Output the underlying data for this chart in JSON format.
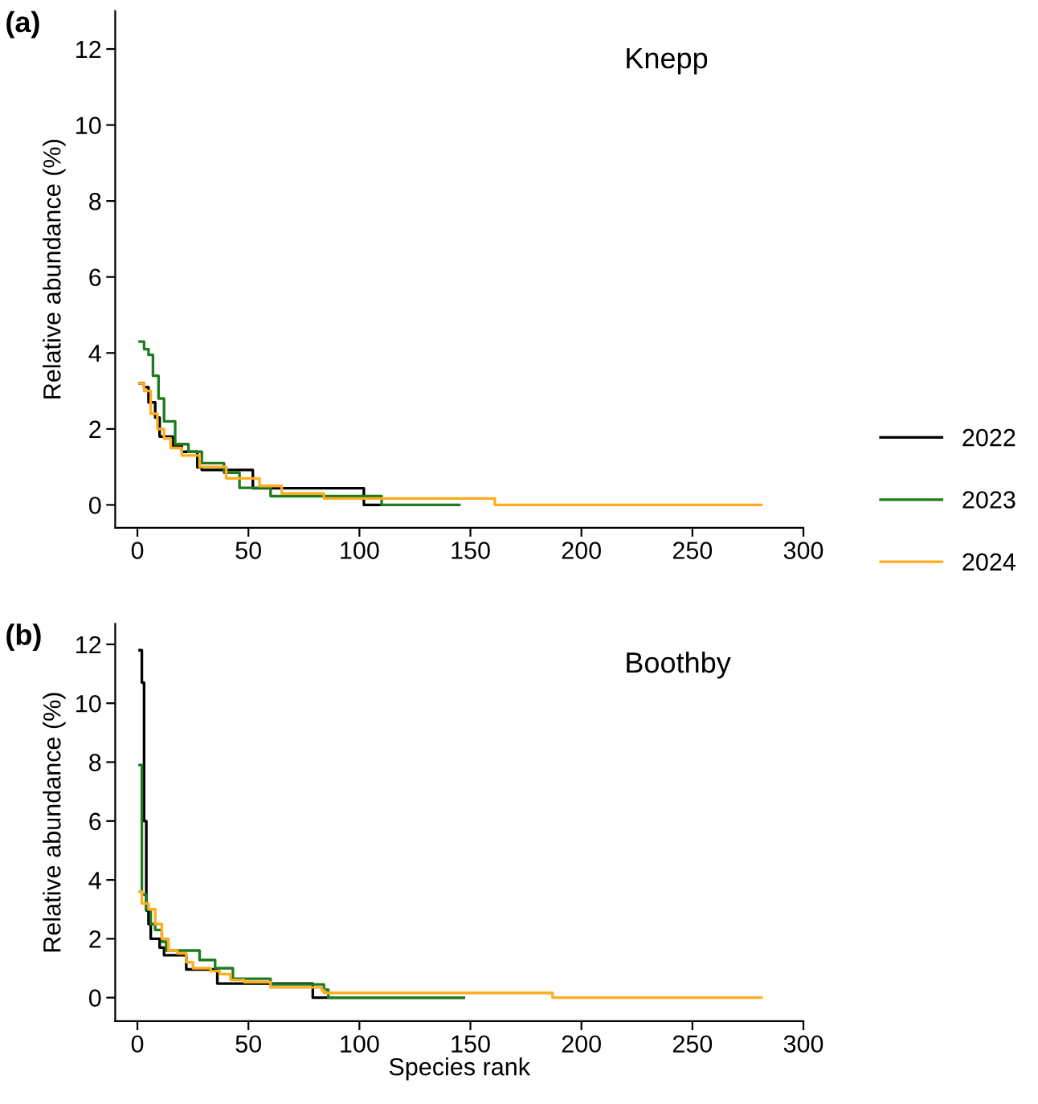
{
  "chart_data": [
    {
      "type": "step",
      "title": "(a)",
      "ylabel": "Relative abundance (%)",
      "annotations": [
        "Knepp"
      ],
      "xlim": [
        -10,
        300
      ],
      "ylim": [
        -0.6,
        13
      ],
      "xticks": [
        0,
        50,
        100,
        150,
        200,
        250,
        300
      ],
      "yticks": [
        0,
        2,
        4,
        6,
        8,
        10,
        12
      ],
      "grid": false,
      "legend": "right",
      "series": [
        {
          "name": "2022",
          "color": "#000000",
          "x": [
            1,
            3,
            5,
            8,
            10,
            16,
            20,
            27,
            29,
            52,
            102,
            110
          ],
          "values": [
            3.2,
            3.1,
            2.7,
            2.3,
            1.8,
            1.55,
            1.4,
            0.99,
            0.92,
            0.44,
            0,
            0
          ]
        },
        {
          "name": "2023",
          "color": "#1e7b1e",
          "x": [
            1,
            3,
            5,
            7,
            9.5,
            12,
            17,
            23,
            29,
            39,
            46,
            60,
            110,
            145
          ],
          "values": [
            4.3,
            4.1,
            3.95,
            3.4,
            2.8,
            2.2,
            1.6,
            1.4,
            1.1,
            0.85,
            0.45,
            0.23,
            0,
            0
          ]
        },
        {
          "name": "2024",
          "color": "#ffad1f",
          "x": [
            1,
            3,
            6,
            9,
            12,
            15,
            20,
            28,
            40,
            55,
            65,
            84,
            161,
            281
          ],
          "values": [
            3.2,
            3.0,
            2.4,
            2.0,
            1.75,
            1.5,
            1.3,
            1.0,
            0.7,
            0.5,
            0.3,
            0.17,
            0,
            0
          ]
        }
      ]
    },
    {
      "type": "step",
      "title": "(b)",
      "xlabel": "Species rank",
      "ylabel": "Relative abundance (%)",
      "annotations": [
        "Boothby"
      ],
      "xlim": [
        -10,
        300
      ],
      "ylim": [
        -0.8,
        12.7
      ],
      "xticks": [
        0,
        50,
        100,
        150,
        200,
        250,
        300
      ],
      "yticks": [
        0,
        2,
        4,
        6,
        8,
        10,
        12
      ],
      "grid": false,
      "series": [
        {
          "color": "#000000",
          "x": [
            1,
            2,
            3,
            4,
            5,
            6,
            10,
            12,
            22,
            36,
            79,
            147
          ],
          "values": [
            11.8,
            10.7,
            6.0,
            2.96,
            2.5,
            2.0,
            1.7,
            1.44,
            0.96,
            0.48,
            0,
            0
          ]
        },
        {
          "color": "#1e7b1e",
          "x": [
            1,
            2,
            4,
            6,
            8,
            11,
            13,
            28,
            35,
            43,
            60,
            84,
            86,
            147
          ],
          "values": [
            7.9,
            3.5,
            3.0,
            2.5,
            2.3,
            1.9,
            1.6,
            1.28,
            1.0,
            0.64,
            0.45,
            0.27,
            0,
            0
          ]
        },
        {
          "color": "#ffad1f",
          "x": [
            1,
            2,
            5,
            8,
            11,
            14,
            18,
            22,
            25,
            33,
            37,
            42,
            48,
            60,
            83,
            84,
            187,
            281
          ],
          "values": [
            3.6,
            3.2,
            3.0,
            2.5,
            2.0,
            1.6,
            1.5,
            1.2,
            1.0,
            0.9,
            0.8,
            0.6,
            0.53,
            0.35,
            0.25,
            0.16,
            0,
            0
          ]
        }
      ]
    }
  ]
}
